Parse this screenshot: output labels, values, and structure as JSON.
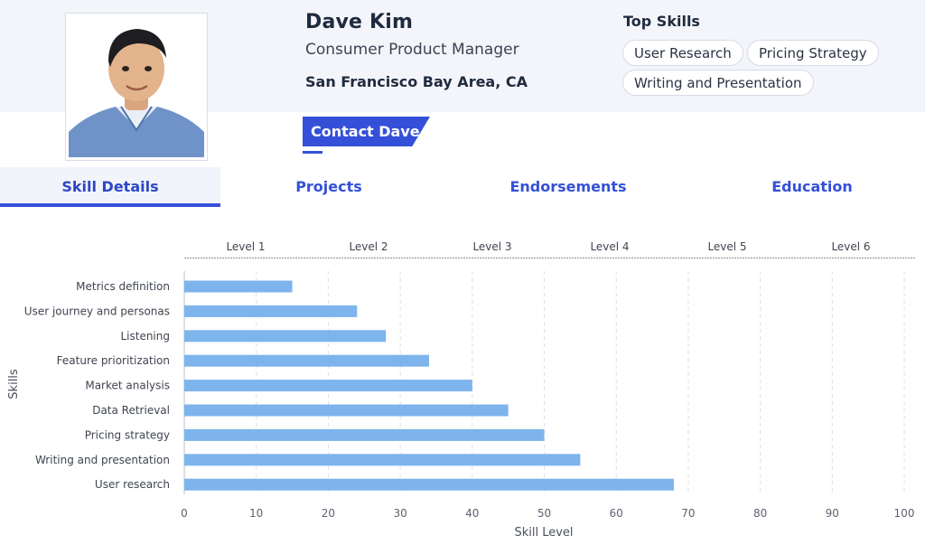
{
  "profile": {
    "name": "Dave Kim",
    "title": "Consumer Product Manager",
    "location": "San Francisco Bay Area, CA",
    "contact_label": "Contact Dave"
  },
  "top_skills": {
    "heading": "Top Skills",
    "items": [
      "User Research",
      "Pricing Strategy",
      "Writing and Presentation"
    ]
  },
  "tabs": [
    {
      "label": "Skill Details",
      "active": true
    },
    {
      "label": "Projects",
      "active": false
    },
    {
      "label": "Endorsements",
      "active": false
    },
    {
      "label": "Education",
      "active": false
    }
  ],
  "colors": {
    "accent": "#3550d8",
    "bar": "#7eb4ec",
    "header_bg": "#f4f5fa"
  },
  "chart_data": {
    "type": "bar",
    "orientation": "horizontal",
    "categories": [
      "Metrics definition",
      "User journey and personas",
      "Listening",
      "Feature prioritization",
      "Market analysis",
      "Data Retrieval",
      "Pricing strategy",
      "Writing and presentation",
      "User research"
    ],
    "values": [
      15,
      24,
      28,
      34,
      40,
      45,
      50,
      55,
      68
    ],
    "xlabel": "Skill Level",
    "ylabel": "Skills",
    "xlim": [
      0,
      100
    ],
    "xticks": [
      0,
      10,
      20,
      30,
      40,
      50,
      60,
      70,
      80,
      90,
      100
    ],
    "level_labels": [
      "Level 1",
      "Level 2",
      "Level 3",
      "Level 4",
      "Level 5",
      "Level 6"
    ],
    "grid": "vertical dashed"
  }
}
